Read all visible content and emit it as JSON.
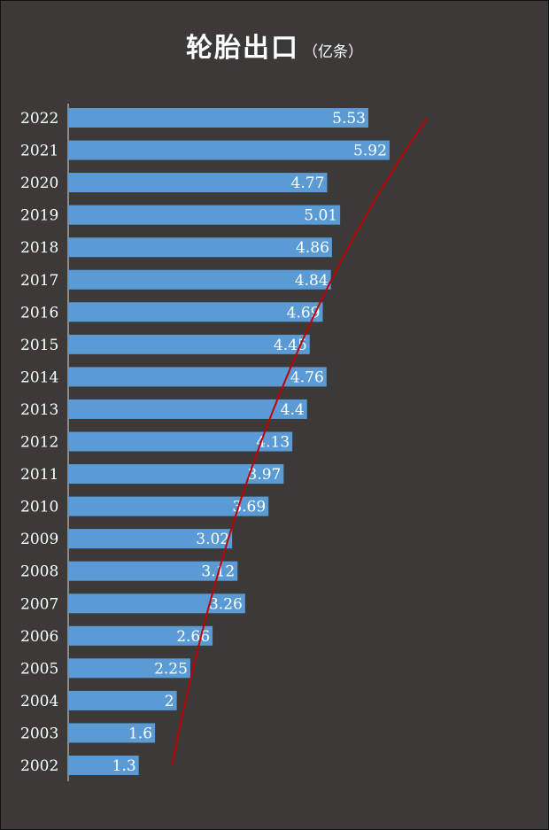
{
  "chart_data": {
    "type": "bar",
    "orientation": "horizontal",
    "title": "轮胎出口",
    "unit": "（亿条）",
    "categories": [
      "2002",
      "2003",
      "2004",
      "2005",
      "2006",
      "2007",
      "2008",
      "2009",
      "2010",
      "2011",
      "2012",
      "2013",
      "2014",
      "2015",
      "2016",
      "2017",
      "2018",
      "2019",
      "2020",
      "2021",
      "2022"
    ],
    "values": [
      1.3,
      1.6,
      2,
      2.25,
      2.66,
      3.26,
      3.12,
      3.02,
      3.69,
      3.97,
      4.13,
      4.4,
      4.76,
      4.45,
      4.69,
      4.84,
      4.86,
      5.01,
      4.77,
      5.92,
      5.53
    ],
    "value_labels": [
      "1.3",
      "1.6",
      "2",
      "2.25",
      "2.66",
      "3.26",
      "3.12",
      "3.02",
      "3.69",
      "3.97",
      "4.13",
      "4.4",
      "4.76",
      "4.45",
      "4.69",
      "4.84",
      "4.86",
      "5.01",
      "4.77",
      "5.92",
      "5.53"
    ],
    "xlim": [
      0,
      6
    ],
    "grid": false,
    "legend": "none",
    "bar_color": "#5b9bd5",
    "trendline": {
      "type": "exponential",
      "color": "#c00000"
    },
    "background": "#3b3a39",
    "text_color": "#ffffff"
  }
}
